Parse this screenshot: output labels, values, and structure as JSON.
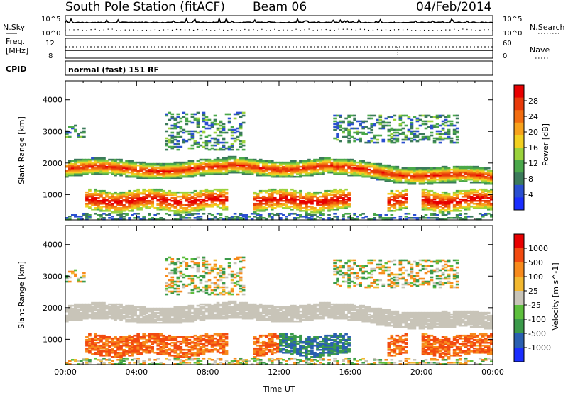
{
  "header": {
    "station": "South Pole Station (fitACF)",
    "beam": "Beam 06",
    "date": "04/Feb/2014"
  },
  "strip_panels": {
    "nsky": {
      "label": "N.Sky",
      "right_label": "N.Search",
      "ticks_left": [
        "10^5",
        "10^0"
      ],
      "ticks_right": [
        "10^5",
        "10^0"
      ]
    },
    "freq": {
      "label_line1": "Freq.",
      "label_line2": "[MHz]",
      "ticks_left": [
        "12",
        "8"
      ],
      "right_label": "Nave",
      "ticks_right": [
        "60",
        "0"
      ]
    },
    "cpid": {
      "label": "CPID",
      "value": "normal (fast) 151 RF"
    }
  },
  "colors": {
    "power": [
      "#1a2eff",
      "#2a4fd0",
      "#3b7a5a",
      "#4aa84a",
      "#9ad23c",
      "#f2d020",
      "#f7a21c",
      "#f26d10",
      "#e83a0a",
      "#e80000"
    ],
    "velocity": [
      "#e80000",
      "#f24a10",
      "#f78a1c",
      "#f2b830",
      "#c8c4b8",
      "#5dbf3d",
      "#3b9a4a",
      "#2a5fb0",
      "#1a2eff"
    ]
  },
  "chart_data": [
    {
      "type": "heatmap",
      "title": "Power",
      "ylabel": "Slant Range [km]",
      "xlabel": "",
      "x_ticks": [],
      "y_ticks": [
        "1000",
        "2000",
        "3000",
        "4000"
      ],
      "ylim": [
        200,
        4600
      ],
      "xlim": [
        0,
        24
      ],
      "colorbar": {
        "label": "Power [dB]",
        "ticks": [
          "4",
          "8",
          "12",
          "16",
          "20",
          "24",
          "28"
        ],
        "range": [
          0,
          32
        ]
      },
      "regions": [
        {
          "name": "main F-region band",
          "x_range": [
            0,
            24
          ],
          "y_center_km": "1800 falling to 1500",
          "level": "12-28 dB"
        },
        {
          "name": "near-range band",
          "x_range": [
            1,
            24
          ],
          "y_center_km": "800",
          "level": "16-30 dB"
        },
        {
          "name": "far-range patches",
          "x_range": [
            5,
            22
          ],
          "y_center_km": "3000",
          "level": "4-12 dB"
        }
      ]
    },
    {
      "type": "heatmap",
      "title": "Velocity",
      "ylabel": "Slant Range [km]",
      "xlabel": "Time UT",
      "x_ticks": [
        "00:00",
        "04:00",
        "08:00",
        "12:00",
        "16:00",
        "20:00",
        "00:00"
      ],
      "y_ticks": [
        "1000",
        "2000",
        "3000",
        "4000"
      ],
      "ylim": [
        200,
        4600
      ],
      "xlim": [
        0,
        24
      ],
      "colorbar": {
        "label": "Velocity [m s^-1]",
        "ticks": [
          "1000",
          "500",
          "100",
          "25",
          "-25",
          "-100",
          "-500",
          "-1000"
        ],
        "range": [
          -1000,
          1000
        ]
      },
      "regions": [
        {
          "name": "ground scatter band",
          "x_range": [
            0,
            24
          ],
          "y_center_km": "1800 falling to 1500",
          "level": "-25 to 25 m/s"
        },
        {
          "name": "near-range band",
          "x_range": [
            1,
            24
          ],
          "y_center_km": "800",
          "level": "-500 to 500 m/s"
        },
        {
          "name": "far-range patches",
          "x_range": [
            5,
            22
          ],
          "y_center_km": "3000",
          "level": "-100 to 100 m/s"
        }
      ]
    }
  ]
}
